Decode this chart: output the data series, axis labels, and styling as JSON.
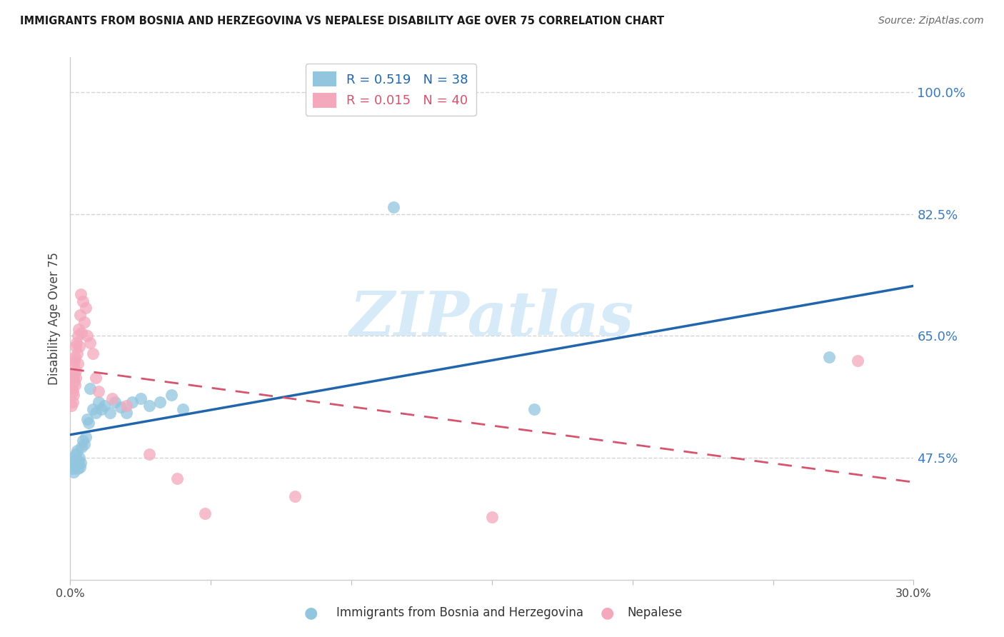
{
  "title": "IMMIGRANTS FROM BOSNIA AND HERZEGOVINA VS NEPALESE DISABILITY AGE OVER 75 CORRELATION CHART",
  "source": "Source: ZipAtlas.com",
  "ylabel": "Disability Age Over 75",
  "ytick_labels": [
    "100.0%",
    "82.5%",
    "65.0%",
    "47.5%"
  ],
  "ytick_values": [
    1.0,
    0.825,
    0.65,
    0.475
  ],
  "xlim": [
    0.0,
    0.3
  ],
  "ylim": [
    0.3,
    1.05
  ],
  "legend_bosnia_r": "R = 0.519",
  "legend_bosnia_n": "N = 38",
  "legend_nepal_r": "R = 0.015",
  "legend_nepal_n": "N = 40",
  "legend_label_bosnia": "Immigrants from Bosnia and Herzegovina",
  "legend_label_nepal": "Nepalese",
  "color_bosnia": "#92c5de",
  "color_nepal": "#f4a8bc",
  "color_bosnia_line": "#2166ac",
  "color_nepal_line": "#d6546e",
  "watermark_text": "ZIPatlas",
  "watermark_color": "#d6eaf8",
  "bosnia_x": [
    0.0008,
    0.001,
    0.0012,
    0.0015,
    0.0018,
    0.002,
    0.0022,
    0.0025,
    0.0028,
    0.003,
    0.0032,
    0.0035,
    0.0038,
    0.004,
    0.0045,
    0.005,
    0.0055,
    0.006,
    0.0065,
    0.007,
    0.008,
    0.009,
    0.01,
    0.011,
    0.012,
    0.014,
    0.016,
    0.018,
    0.02,
    0.022,
    0.025,
    0.028,
    0.032,
    0.036,
    0.04,
    0.115,
    0.165,
    0.27
  ],
  "bosnia_y": [
    0.46,
    0.475,
    0.455,
    0.468,
    0.472,
    0.48,
    0.465,
    0.485,
    0.46,
    0.47,
    0.475,
    0.462,
    0.468,
    0.49,
    0.5,
    0.495,
    0.505,
    0.53,
    0.525,
    0.575,
    0.545,
    0.54,
    0.555,
    0.545,
    0.55,
    0.54,
    0.555,
    0.548,
    0.54,
    0.555,
    0.56,
    0.55,
    0.555,
    0.565,
    0.545,
    0.835,
    0.545,
    0.62
  ],
  "nepal_x": [
    0.0005,
    0.0007,
    0.0008,
    0.0009,
    0.001,
    0.0011,
    0.0012,
    0.0013,
    0.0014,
    0.0015,
    0.0016,
    0.0017,
    0.0018,
    0.0019,
    0.002,
    0.0022,
    0.0024,
    0.0026,
    0.0028,
    0.003,
    0.0032,
    0.0035,
    0.0038,
    0.004,
    0.0045,
    0.005,
    0.0055,
    0.006,
    0.007,
    0.008,
    0.009,
    0.01,
    0.015,
    0.02,
    0.028,
    0.038,
    0.048,
    0.08,
    0.15,
    0.28
  ],
  "nepal_y": [
    0.55,
    0.575,
    0.555,
    0.59,
    0.57,
    0.565,
    0.61,
    0.585,
    0.615,
    0.595,
    0.62,
    0.58,
    0.635,
    0.6,
    0.59,
    0.64,
    0.625,
    0.65,
    0.61,
    0.66,
    0.635,
    0.68,
    0.71,
    0.655,
    0.7,
    0.67,
    0.69,
    0.65,
    0.64,
    0.625,
    0.59,
    0.57,
    0.56,
    0.55,
    0.48,
    0.445,
    0.395,
    0.42,
    0.39,
    0.615
  ],
  "background_color": "#ffffff",
  "grid_color": "#d3d3d3"
}
